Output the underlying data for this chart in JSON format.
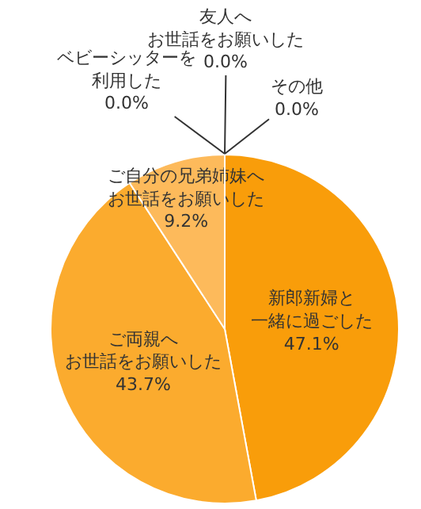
{
  "chart_data": {
    "type": "pie",
    "categories": [
      "新郎新婦と一緒に過ごした",
      "ご両親へお世話をお願いした",
      "ご自分の兄弟姉妹へお世話をお願いした",
      "ベビーシッターを利用した",
      "友人へお世話をお願いした",
      "その他"
    ],
    "values": [
      47.1,
      43.7,
      9.2,
      0.0,
      0.0,
      0.0
    ],
    "value_labels": [
      "47.1%",
      "43.7%",
      "9.2%",
      "0.0%",
      "0.0%",
      "0.0%"
    ],
    "colors": [
      "#f99d0a",
      "#fbab2e",
      "#fdba5b",
      "#fdc67a",
      "#fdd29a",
      "#fedfb8"
    ],
    "legend": false
  }
}
